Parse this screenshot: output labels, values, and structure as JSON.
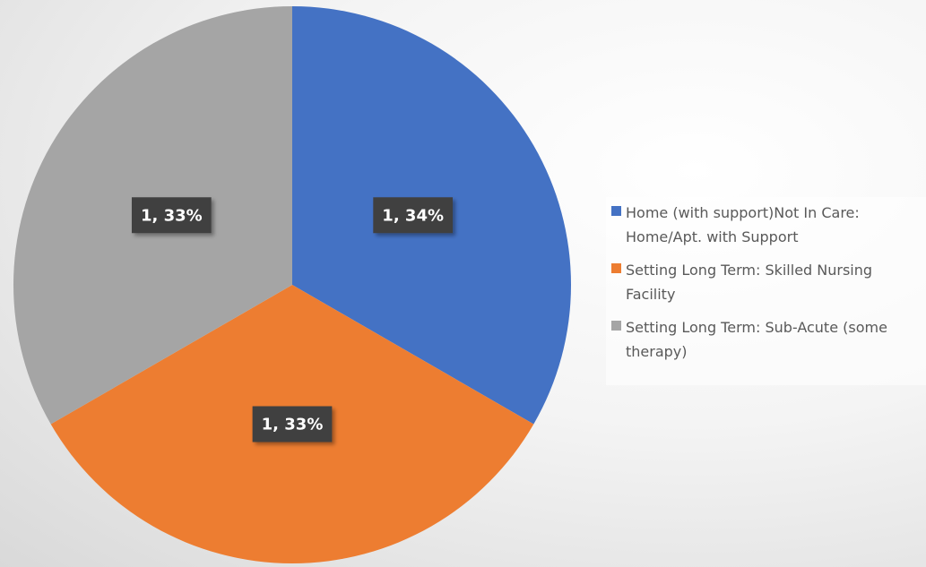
{
  "chart_data": {
    "type": "pie",
    "categories": [
      "Home (with support)Not In Care: Home/Apt. with Support",
      "Setting Long Term: Skilled Nursing Facility",
      "Setting Long Term: Sub-Acute (some therapy)"
    ],
    "values": [
      1,
      1,
      1
    ],
    "value_labels": [
      "1, 34%",
      "1, 33%",
      "1, 33%"
    ],
    "colors": [
      "#4472c4",
      "#ed7d31",
      "#a5a5a5"
    ],
    "legend": "right"
  }
}
